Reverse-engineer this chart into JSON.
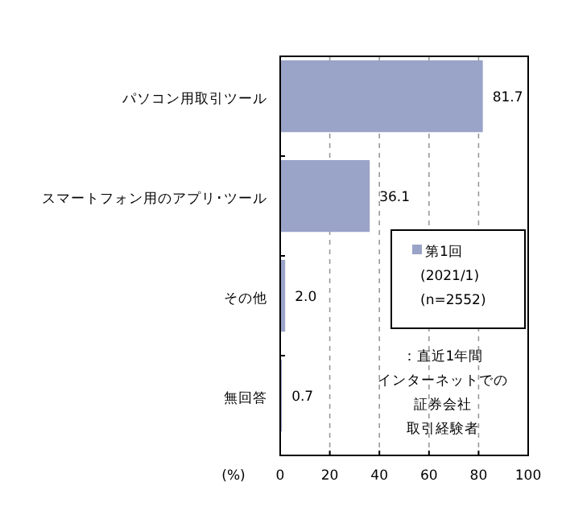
{
  "chart_data": {
    "type": "bar",
    "orientation": "horizontal",
    "categories": [
      "パソコン用取引ツール",
      "スマートフォン用のアプリ･ツール",
      "その他",
      "無回答"
    ],
    "series": [
      {
        "name": "第1回 (2021/1) (n=2552)",
        "color": "#9aa3c8",
        "values": [
          81.7,
          36.1,
          2.0,
          0.7
        ],
        "value_labels": [
          "81.7",
          "36.1",
          "2.0",
          "0.7"
        ]
      }
    ],
    "xlabel": "(%)",
    "xlim": [
      0,
      100
    ],
    "xticks": [
      0,
      20,
      40,
      60,
      80,
      100
    ],
    "grid": "x",
    "legend": "right",
    "annotations": [
      "：直近1年間",
      "インターネットでの",
      "証券会社",
      "取引経験者"
    ]
  }
}
